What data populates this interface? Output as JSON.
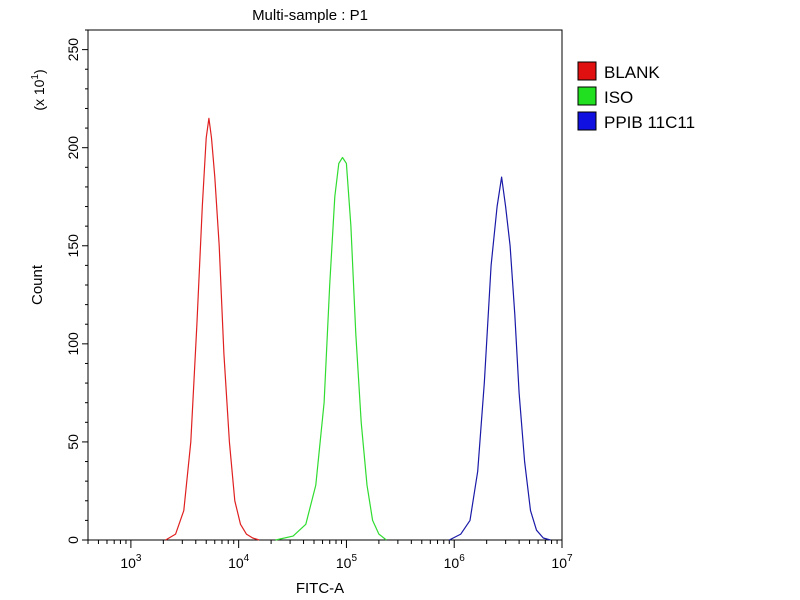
{
  "chart_data": {
    "type": "line",
    "title": "Multi-sample : P1",
    "xlabel": "FITC-A",
    "ylabel": "Count",
    "y_multiplier_label": "(x 10",
    "y_multiplier_exp": "1",
    "x_scale": "log",
    "xlim": [
      400,
      10000000
    ],
    "ylim": [
      0,
      260
    ],
    "x_ticks": [
      {
        "value": 1000,
        "base": "10",
        "exp": "3"
      },
      {
        "value": 10000,
        "base": "10",
        "exp": "4"
      },
      {
        "value": 100000,
        "base": "10",
        "exp": "5"
      },
      {
        "value": 1000000,
        "base": "10",
        "exp": "6"
      },
      {
        "value": 10000000,
        "base": "10",
        "exp": "7"
      }
    ],
    "y_ticks": [
      0,
      50,
      100,
      150,
      200,
      250
    ],
    "grid": false,
    "legend_position": "right",
    "series": [
      {
        "name": "BLANK",
        "color": "#e02020",
        "legend_color": "#e01010",
        "x": [
          2100,
          2600,
          3100,
          3600,
          4100,
          4600,
          5000,
          5300,
          5600,
          6000,
          6600,
          7300,
          8200,
          9200,
          10400,
          11800,
          13500,
          15500
        ],
        "y": [
          0,
          3,
          15,
          50,
          110,
          170,
          205,
          215,
          205,
          185,
          150,
          95,
          50,
          20,
          8,
          3,
          1,
          0
        ]
      },
      {
        "name": "ISO",
        "color": "#30dc30",
        "legend_color": "#20e020",
        "x": [
          22000,
          32000,
          42000,
          52000,
          62000,
          70000,
          78000,
          85000,
          92000,
          100000,
          110000,
          122000,
          137000,
          155000,
          175000,
          200000,
          235000
        ],
        "y": [
          0,
          2,
          8,
          28,
          70,
          130,
          175,
          192,
          195,
          192,
          160,
          105,
          60,
          28,
          10,
          3,
          0
        ]
      },
      {
        "name": "PPIB 11C11",
        "color": "#1a1aa8",
        "legend_color": "#1010e0",
        "x": [
          900000,
          1150000,
          1400000,
          1650000,
          1900000,
          2200000,
          2500000,
          2750000,
          3000000,
          3300000,
          3650000,
          4000000,
          4500000,
          5100000,
          5800000,
          6700000,
          7800000
        ],
        "y": [
          0,
          3,
          10,
          35,
          80,
          140,
          170,
          185,
          170,
          150,
          115,
          75,
          40,
          15,
          5,
          1,
          0
        ]
      }
    ]
  }
}
